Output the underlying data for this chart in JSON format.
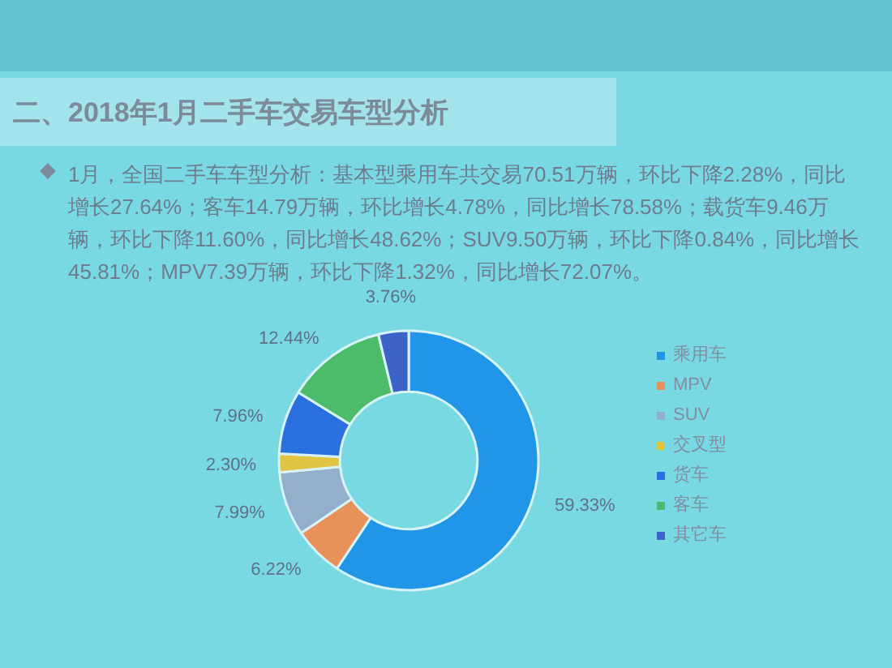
{
  "chart_data": {
    "type": "donut",
    "title": "二、2018年1月二手车交易车型分析",
    "annotations": [
      "1月，全国二手车车型分析：基本型乘用车共交易70.51万辆，环比下降2.28%，同比增长27.64%；客车14.79万辆，环比增长4.78%，同比增长78.58%；载货车9.46万辆，环比下降11.60%，同比增长48.62%；SUV9.50万辆，环比下降0.84%，同比增长45.81%；MPV7.39万辆，环比下降1.32%，同比增长72.07%。"
    ],
    "categories": [
      "乘用车",
      "MPV",
      "SUV",
      "交叉型",
      "货车",
      "客车",
      "其它车"
    ],
    "values": [
      59.33,
      6.22,
      7.99,
      2.3,
      7.96,
      12.44,
      3.76
    ],
    "value_labels": [
      "59.33%",
      "6.22%",
      "7.99%",
      "2.30%",
      "7.96%",
      "12.44%",
      "3.76%"
    ],
    "colors": [
      "#2196e8",
      "#e8915a",
      "#93afcc",
      "#e2c443",
      "#2a6fe0",
      "#4cbb6a",
      "#3b63c8"
    ],
    "legend": "right"
  }
}
